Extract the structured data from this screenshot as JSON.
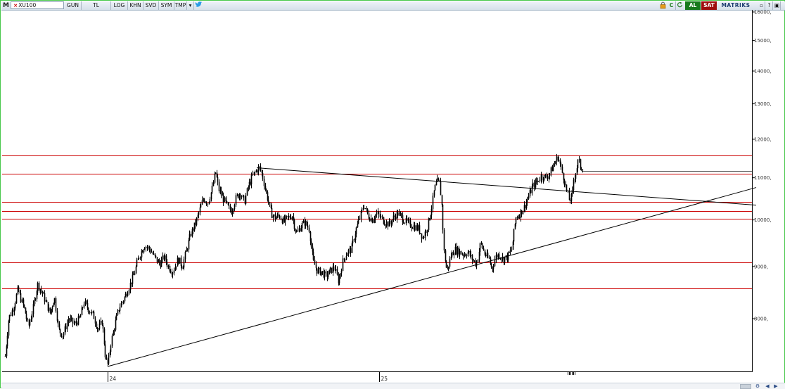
{
  "toolbar": {
    "logo": "M",
    "symbol": "XU100",
    "buttons": [
      "GUN",
      "TL",
      "LOG",
      "KHN",
      "SVD",
      "SYM",
      "TMP"
    ],
    "buy_label": "AL",
    "sell_label": "SAT",
    "brand": "MATRIKS",
    "c_label": "C"
  },
  "colors": {
    "frame": "#48c84a",
    "candle": "#000000",
    "horizontal_line": "#cc0000",
    "trend_line": "#000000",
    "toolbar_buy": "#177a1c",
    "toolbar_sell": "#a00d0d"
  },
  "chart_data": {
    "type": "candlestick",
    "symbol": "XU100",
    "period": "GUN",
    "y_scale": "log",
    "ylim": [
      7150,
      16200
    ],
    "y_ticks": [
      "16000,",
      "15000,",
      "14000,",
      "13000,",
      "12000,",
      "11000,",
      "10000,",
      "9000,",
      "8000,"
    ],
    "x_ticks": [
      "24",
      "25"
    ],
    "series": [
      {
        "points": [
          [
            0,
            7350
          ],
          [
            5,
            8000
          ],
          [
            13,
            8250
          ],
          [
            18,
            8550
          ],
          [
            24,
            8300
          ],
          [
            28,
            8150
          ],
          [
            33,
            7850
          ],
          [
            40,
            8200
          ],
          [
            46,
            8650
          ],
          [
            52,
            8500
          ],
          [
            58,
            8300
          ],
          [
            64,
            8100
          ],
          [
            70,
            8400
          ],
          [
            76,
            7800
          ],
          [
            82,
            7700
          ],
          [
            90,
            8000
          ],
          [
            98,
            7900
          ],
          [
            106,
            8000
          ],
          [
            112,
            8300
          ],
          [
            120,
            8150
          ],
          [
            126,
            8050
          ],
          [
            132,
            7800
          ],
          [
            138,
            7950
          ],
          [
            143,
            7300
          ],
          [
            146,
            7200
          ],
          [
            150,
            7550
          ],
          [
            156,
            7900
          ],
          [
            162,
            8200
          ],
          [
            170,
            8400
          ],
          [
            176,
            8600
          ],
          [
            182,
            8800
          ],
          [
            190,
            9200
          ],
          [
            198,
            9450
          ],
          [
            206,
            9350
          ],
          [
            212,
            9200
          ],
          [
            220,
            9050
          ],
          [
            226,
            9200
          ],
          [
            232,
            9000
          ],
          [
            238,
            8900
          ],
          [
            246,
            9150
          ],
          [
            252,
            9000
          ],
          [
            258,
            9350
          ],
          [
            264,
            9700
          ],
          [
            270,
            9900
          ],
          [
            276,
            10200
          ],
          [
            282,
            10500
          ],
          [
            288,
            10400
          ],
          [
            294,
            10700
          ],
          [
            299,
            11150
          ],
          [
            304,
            10700
          ],
          [
            310,
            10500
          ],
          [
            316,
            10300
          ],
          [
            322,
            10200
          ],
          [
            328,
            10500
          ],
          [
            334,
            10650
          ],
          [
            340,
            10400
          ],
          [
            346,
            10800
          ],
          [
            352,
            11050
          ],
          [
            358,
            11200
          ],
          [
            362,
            11250
          ],
          [
            366,
            11050
          ],
          [
            370,
            10700
          ],
          [
            374,
            10450
          ],
          [
            378,
            10150
          ],
          [
            384,
            10050
          ],
          [
            390,
            10100
          ],
          [
            396,
            9950
          ],
          [
            402,
            10050
          ],
          [
            408,
            10100
          ],
          [
            414,
            9700
          ],
          [
            420,
            9850
          ],
          [
            426,
            9950
          ],
          [
            432,
            9800
          ],
          [
            438,
            9100
          ],
          [
            444,
            8900
          ],
          [
            450,
            8900
          ],
          [
            456,
            8800
          ],
          [
            462,
            8900
          ],
          [
            468,
            9000
          ],
          [
            474,
            8700
          ],
          [
            480,
            9100
          ],
          [
            486,
            9300
          ],
          [
            492,
            9350
          ],
          [
            498,
            9750
          ],
          [
            504,
            10050
          ],
          [
            510,
            10350
          ],
          [
            516,
            10100
          ],
          [
            522,
            10000
          ],
          [
            528,
            10150
          ],
          [
            534,
            10050
          ],
          [
            540,
            9950
          ],
          [
            546,
            9900
          ],
          [
            552,
            10050
          ],
          [
            558,
            10150
          ],
          [
            564,
            10050
          ],
          [
            570,
            9950
          ],
          [
            576,
            9900
          ],
          [
            582,
            9850
          ],
          [
            588,
            9800
          ],
          [
            594,
            9600
          ],
          [
            600,
            9850
          ],
          [
            606,
            10250
          ],
          [
            610,
            10700
          ],
          [
            614,
            10900
          ],
          [
            618,
            10850
          ],
          [
            621,
            10300
          ],
          [
            624,
            9300
          ],
          [
            628,
            8900
          ],
          [
            634,
            9250
          ],
          [
            640,
            9350
          ],
          [
            646,
            9300
          ],
          [
            652,
            9250
          ],
          [
            658,
            9300
          ],
          [
            664,
            9150
          ],
          [
            670,
            9050
          ],
          [
            676,
            9500
          ],
          [
            682,
            9250
          ],
          [
            688,
            9150
          ],
          [
            692,
            8950
          ],
          [
            697,
            9200
          ],
          [
            702,
            9250
          ],
          [
            708,
            9150
          ],
          [
            714,
            9200
          ],
          [
            720,
            9350
          ],
          [
            726,
            10050
          ],
          [
            732,
            10150
          ],
          [
            738,
            10300
          ],
          [
            744,
            10550
          ],
          [
            750,
            10800
          ],
          [
            756,
            10900
          ],
          [
            762,
            11050
          ],
          [
            768,
            11000
          ],
          [
            774,
            11100
          ],
          [
            778,
            11250
          ],
          [
            782,
            11400
          ],
          [
            786,
            11550
          ],
          [
            790,
            11250
          ],
          [
            794,
            11000
          ],
          [
            798,
            10700
          ],
          [
            802,
            10450
          ],
          [
            806,
            10550
          ],
          [
            808,
            10950
          ],
          [
            812,
            11200
          ],
          [
            815,
            11450
          ],
          [
            818,
            11250
          ],
          [
            822,
            11300
          ]
        ]
      }
    ],
    "horizontal_levels": [
      11570,
      11100,
      10420,
      10200,
      10020,
      9080,
      8560
    ],
    "trend_lines": [
      {
        "from": [
          358,
          11250
        ],
        "to": [
          1068,
          10340
        ]
      },
      {
        "from": [
          146,
          7180
        ],
        "to": [
          1068,
          10760
        ]
      }
    ],
    "short_level": {
      "from": 820,
      "to": 1068,
      "value": 11170
    }
  }
}
